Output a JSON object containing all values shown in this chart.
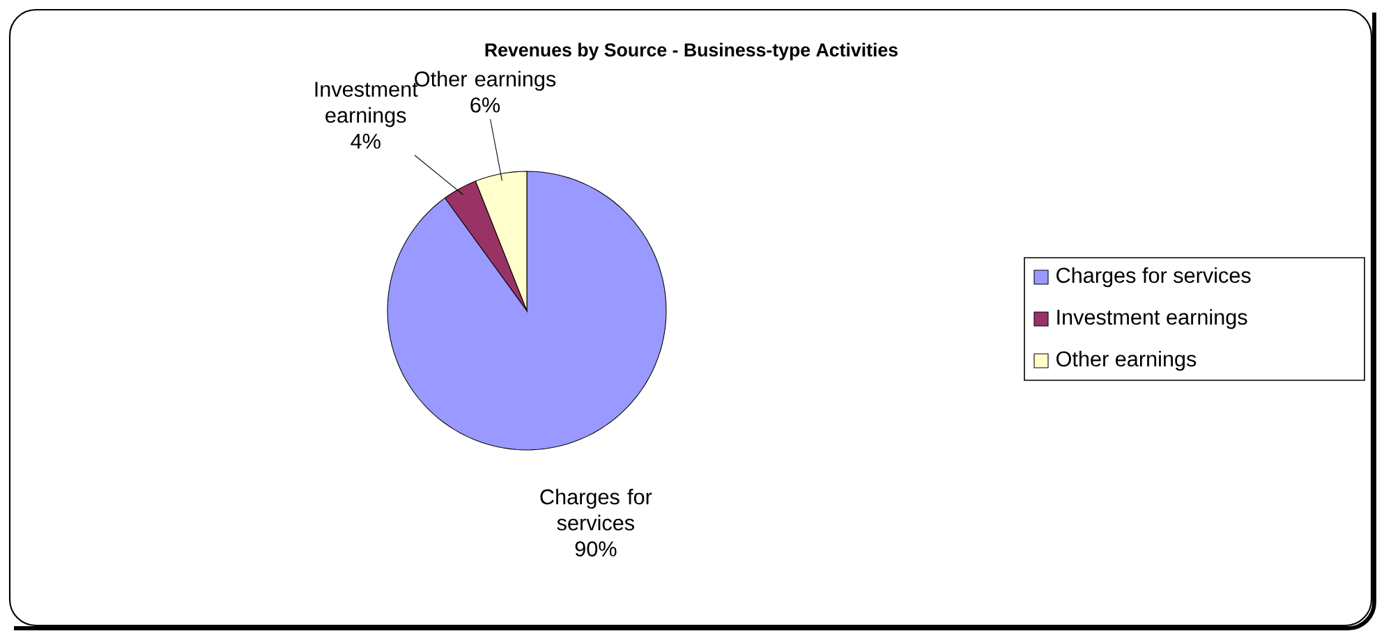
{
  "chart_data": {
    "type": "pie",
    "title": "Revenues by Source - Business-type Activities",
    "categories": [
      "Charges for services",
      "Investment earnings",
      "Other earnings"
    ],
    "values": [
      90,
      4,
      6
    ],
    "colors": [
      "#9999ff",
      "#993366",
      "#ffffcc"
    ],
    "value_labels": [
      "90%",
      "4%",
      "6%"
    ],
    "legend": "right"
  }
}
